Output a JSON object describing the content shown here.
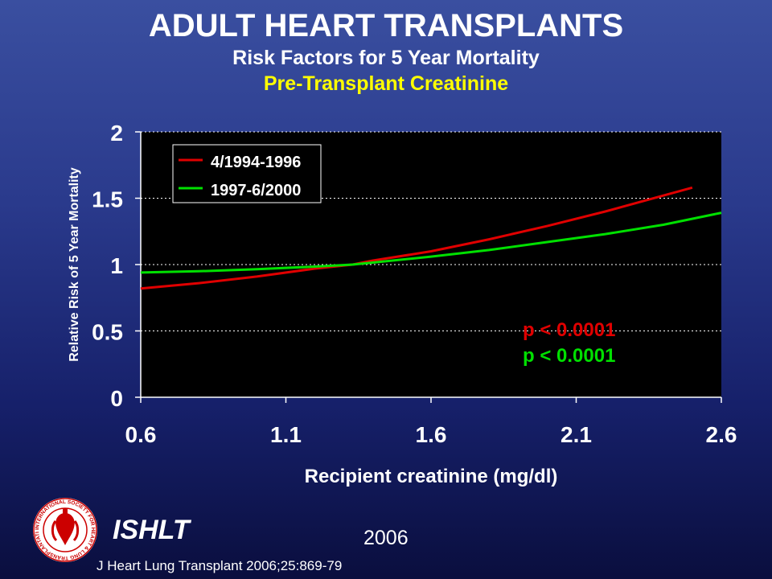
{
  "header": {
    "title": "ADULT HEART TRANSPLANTS",
    "subtitle": "Risk Factors for 5 Year Mortality",
    "subtitle2": "Pre-Transplant Creatinine"
  },
  "chart_data": {
    "type": "line",
    "xlabel": "Recipient creatinine (mg/dl)",
    "ylabel": "Relative Risk of 5 Year Mortality",
    "xlim": [
      0.6,
      2.6
    ],
    "ylim": [
      0,
      2
    ],
    "x_ticks": [
      "0.6",
      "1.1",
      "1.6",
      "2.1",
      "2.6"
    ],
    "y_ticks": [
      "0",
      "0.5",
      "1",
      "1.5",
      "2"
    ],
    "grid": "horizontal dotted",
    "legend_position": "top-left",
    "series": [
      {
        "name": "4/1994-1996",
        "color": "#e00000",
        "x": [
          0.6,
          0.8,
          1.0,
          1.2,
          1.33,
          1.4,
          1.6,
          1.8,
          2.0,
          2.2,
          2.4,
          2.5
        ],
        "y": [
          0.82,
          0.86,
          0.91,
          0.97,
          1.0,
          1.03,
          1.1,
          1.19,
          1.29,
          1.4,
          1.52,
          1.58
        ]
      },
      {
        "name": "1997-6/2000",
        "color": "#00e000",
        "x": [
          0.6,
          0.8,
          1.0,
          1.2,
          1.33,
          1.4,
          1.6,
          1.8,
          2.0,
          2.2,
          2.4,
          2.6
        ],
        "y": [
          0.94,
          0.95,
          0.965,
          0.985,
          1.0,
          1.015,
          1.06,
          1.11,
          1.17,
          1.23,
          1.3,
          1.39
        ]
      }
    ],
    "annotations": [
      {
        "text": "p < 0.0001",
        "color": "#e00000"
      },
      {
        "text": "p < 0.0001",
        "color": "#00e000"
      }
    ]
  },
  "footer": {
    "org": "ISHLT",
    "year": "2006",
    "citation": "J Heart Lung Transplant 2006;25:869-79",
    "logo_text": "INTERNATIONAL SOCIETY FOR HEART & LUNG TRANSPLANTATION"
  }
}
